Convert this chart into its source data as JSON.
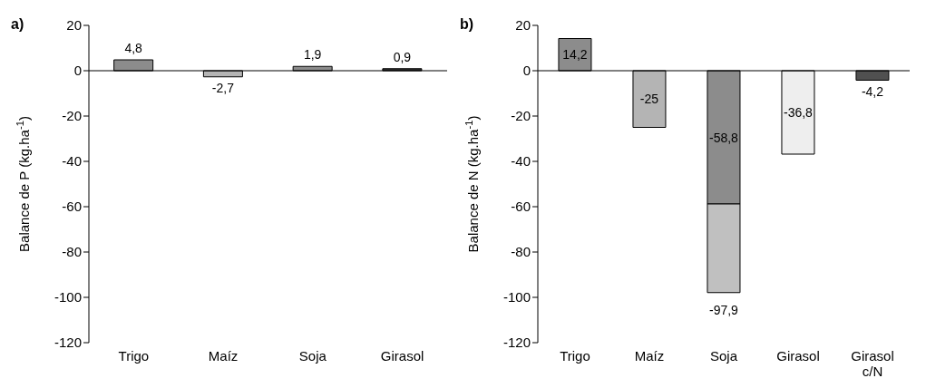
{
  "chart_data": [
    {
      "type": "bar",
      "title": "a)",
      "ylabel": "Balance de P (kg.ha$^{-1}$)",
      "categories": [
        "Trigo",
        "Maíz",
        "Soja",
        "Girasol"
      ],
      "series": [
        {
          "colors": [
            "#8c8c8c",
            "#b4b4b4",
            "#8c8c8c",
            "#333333"
          ],
          "values": [
            4.8,
            -2.7,
            1.9,
            0.9
          ],
          "value_labels": [
            "4,8",
            "-2,7",
            "1,9",
            "0,9"
          ]
        }
      ],
      "ylim": [
        -120,
        20
      ],
      "yticks": [
        -120,
        -100,
        -80,
        -60,
        -40,
        -20,
        0,
        20
      ]
    },
    {
      "type": "bar",
      "title": "b)",
      "ylabel": "Balance de N (kg.ha$^{-1}$)",
      "categories": [
        "Trigo",
        "Maíz",
        "Soja",
        "Girasol",
        "Girasol c/N"
      ],
      "stacked": true,
      "series": [
        {
          "colors": [
            "#8c8c8c",
            "#b4b4b4",
            "#8c8c8c",
            "#eeeeee",
            "#505050"
          ],
          "values": [
            14.2,
            -25,
            -58.8,
            -36.8,
            -4.2
          ],
          "value_labels": [
            "14,2",
            "-25",
            "-58,8",
            "-36,8",
            "-4,2"
          ]
        },
        {
          "colors": [
            null,
            null,
            "#c0c0c0",
            null,
            null
          ],
          "values": [
            null,
            null,
            -39.1,
            null,
            null
          ]
        }
      ],
      "totals": [
        null,
        null,
        "-97,9",
        null,
        null
      ],
      "ylim": [
        -120,
        20
      ],
      "yticks": [
        -120,
        -100,
        -80,
        -60,
        -40,
        -20,
        0,
        20
      ]
    }
  ]
}
